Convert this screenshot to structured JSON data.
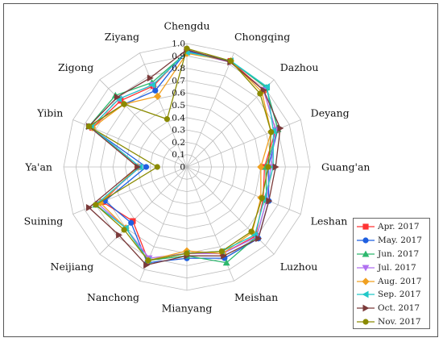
{
  "chart_data": {
    "type": "radar",
    "categories": [
      "Chengdu",
      "Chongqing",
      "Dazhou",
      "Deyang",
      "Guang'an",
      "Leshan",
      "Luzhou",
      "Meishan",
      "Mianyang",
      "Nanchong",
      "Neijiang",
      "Suining",
      "Ya'an",
      "Yibin",
      "Zigong",
      "Ziyang"
    ],
    "rlim": [
      0,
      1
    ],
    "ticks": [
      "0",
      "0.1",
      "0.2",
      "0.3",
      "0.4",
      "0.5",
      "0.6",
      "0.7",
      "0.8",
      "0.9",
      "1.0"
    ],
    "grid": true,
    "legend_position": "bottom-right",
    "series": [
      {
        "name": "Apr. 2017",
        "color": "#ff3333",
        "marker": "square",
        "values": [
          0.94,
          0.93,
          0.88,
          0.78,
          0.63,
          0.67,
          0.79,
          0.76,
          0.7,
          0.82,
          0.62,
          0.74,
          0.4,
          0.83,
          0.76,
          0.71
        ]
      },
      {
        "name": "May. 2017",
        "color": "#1f5fe0",
        "marker": "circle",
        "values": [
          0.94,
          0.93,
          0.91,
          0.8,
          0.66,
          0.72,
          0.82,
          0.8,
          0.74,
          0.84,
          0.64,
          0.72,
          0.33,
          0.86,
          0.72,
          0.67
        ]
      },
      {
        "name": "Jun. 2017",
        "color": "#2db86e",
        "marker": "triangle-up",
        "values": [
          0.93,
          0.93,
          0.91,
          0.8,
          0.64,
          0.7,
          0.8,
          0.84,
          0.72,
          0.82,
          0.7,
          0.8,
          0.38,
          0.86,
          0.82,
          0.74
        ]
      },
      {
        "name": "Jul. 2017",
        "color": "#b070f0",
        "marker": "triangle-down",
        "values": [
          0.93,
          0.92,
          0.88,
          0.78,
          0.68,
          0.7,
          0.8,
          0.76,
          0.7,
          0.8,
          0.7,
          0.78,
          0.38,
          0.84,
          0.78,
          0.72
        ]
      },
      {
        "name": "Aug. 2017",
        "color": "#f0a020",
        "marker": "diamond",
        "values": [
          0.92,
          0.93,
          0.86,
          0.74,
          0.6,
          0.65,
          0.75,
          0.76,
          0.68,
          0.82,
          0.7,
          0.76,
          0.4,
          0.83,
          0.72,
          0.62
        ]
      },
      {
        "name": "Sep. 2017",
        "color": "#22c8c8",
        "marker": "triangle-left",
        "values": [
          0.93,
          0.93,
          0.92,
          0.76,
          0.7,
          0.68,
          0.78,
          0.74,
          0.7,
          0.82,
          0.7,
          0.8,
          0.38,
          0.84,
          0.78,
          0.72
        ]
      },
      {
        "name": "Oct. 2017",
        "color": "#7b3a3a",
        "marker": "triangle-right",
        "values": [
          0.95,
          0.92,
          0.88,
          0.82,
          0.72,
          0.72,
          0.82,
          0.78,
          0.72,
          0.86,
          0.78,
          0.86,
          0.4,
          0.86,
          0.8,
          0.78
        ]
      },
      {
        "name": "Nov. 2017",
        "color": "#8a8a00",
        "marker": "circle",
        "values": [
          0.96,
          0.93,
          0.84,
          0.74,
          0.66,
          0.66,
          0.74,
          0.74,
          0.7,
          0.82,
          0.72,
          0.8,
          0.24,
          0.86,
          0.72,
          0.42
        ]
      }
    ]
  }
}
